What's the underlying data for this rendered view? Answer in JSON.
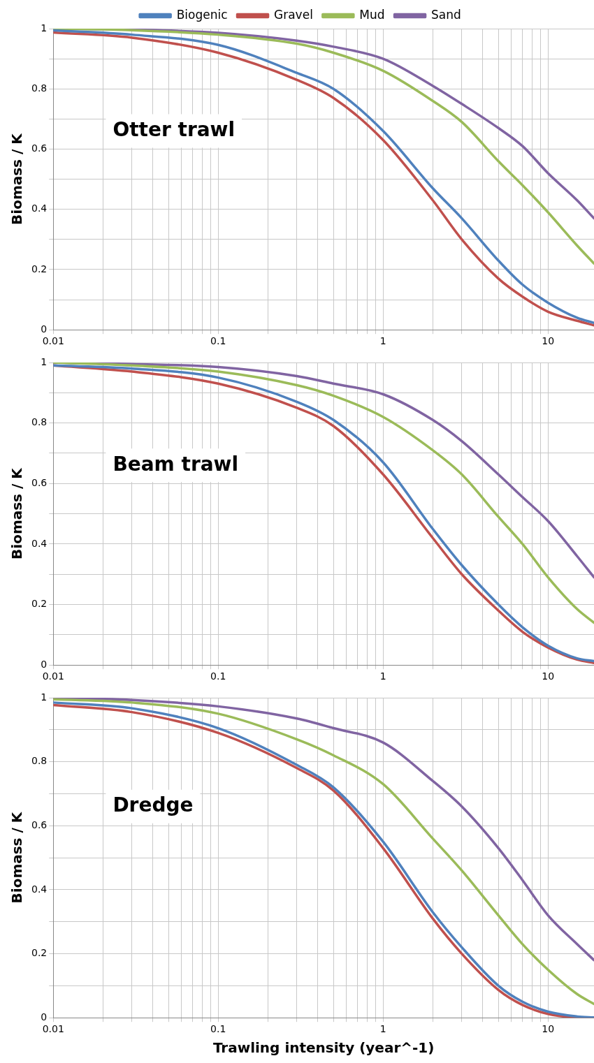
{
  "chart_data": [
    {
      "type": "line",
      "ylabel": "Biomass / K",
      "annotations": [
        "Otter trawl"
      ],
      "log": "x",
      "grid": true,
      "legend": "top",
      "marker": "none",
      "line_style": "solid",
      "xlim": [
        0.01,
        19
      ],
      "xticks": [
        0.01,
        {
          "value": 0.02,
          "label": null
        },
        {
          "value": 0.03,
          "label": null
        },
        {
          "value": 0.04,
          "label": null
        },
        {
          "value": 0.05,
          "label": null
        },
        {
          "value": 0.06,
          "label": null
        },
        {
          "value": 0.07,
          "label": null
        },
        {
          "value": 0.08,
          "label": null
        },
        {
          "value": 0.09,
          "label": null
        },
        0.1,
        {
          "value": 0.2,
          "label": null
        },
        {
          "value": 0.3,
          "label": null
        },
        {
          "value": 0.4,
          "label": null
        },
        {
          "value": 0.5,
          "label": null
        },
        {
          "value": 0.6,
          "label": null
        },
        {
          "value": 0.7,
          "label": null
        },
        {
          "value": 0.8,
          "label": null
        },
        {
          "value": 0.9,
          "label": null
        },
        1,
        {
          "value": 2,
          "label": null
        },
        {
          "value": 3,
          "label": null
        },
        {
          "value": 4,
          "label": null
        },
        {
          "value": 5,
          "label": null
        },
        {
          "value": 6,
          "label": null
        },
        {
          "value": 7,
          "label": null
        },
        {
          "value": 8,
          "label": null
        },
        {
          "value": 9,
          "label": null
        },
        10
      ],
      "ylim": [
        0,
        1
      ],
      "yticks": [
        0,
        {
          "value": 0.1,
          "label": null
        },
        0.2,
        {
          "value": 0.3,
          "label": null
        },
        0.4,
        {
          "value": 0.5,
          "label": null
        },
        0.6,
        {
          "value": 0.7,
          "label": null
        },
        0.8,
        {
          "value": 0.9,
          "label": null
        },
        1
      ],
      "x": [
        0.01,
        0.03,
        0.1,
        0.3,
        0.5,
        1,
        2,
        3,
        5,
        7,
        10,
        15,
        19
      ],
      "series": [
        {
          "name": "Biogenic",
          "color": "#4f81bd",
          "values": [
            0.994,
            0.98,
            0.946,
            0.853,
            0.8,
            0.66,
            0.47,
            0.37,
            0.23,
            0.15,
            0.09,
            0.04,
            0.023
          ]
        },
        {
          "name": "Gravel",
          "color": "#c0504d",
          "values": [
            0.987,
            0.97,
            0.92,
            0.83,
            0.77,
            0.63,
            0.43,
            0.3,
            0.17,
            0.11,
            0.06,
            0.03,
            0.015
          ]
        },
        {
          "name": "Mud",
          "color": "#9bbb59",
          "values": [
            1,
            0.995,
            0.98,
            0.95,
            0.92,
            0.86,
            0.76,
            0.69,
            0.56,
            0.48,
            0.39,
            0.28,
            0.22
          ]
        },
        {
          "name": "Sand",
          "color": "#8064a2",
          "values": [
            1,
            0.997,
            0.986,
            0.96,
            0.94,
            0.9,
            0.81,
            0.75,
            0.67,
            0.61,
            0.52,
            0.43,
            0.37
          ]
        }
      ]
    },
    {
      "type": "line",
      "ylabel": "Biomass / K",
      "annotations": [
        "Beam trawl"
      ],
      "log": "x",
      "grid": true,
      "marker": "none",
      "line_style": "solid",
      "xlim": [
        0.01,
        19
      ],
      "xticks": [
        0.01,
        {
          "value": 0.02,
          "label": null
        },
        {
          "value": 0.03,
          "label": null
        },
        {
          "value": 0.04,
          "label": null
        },
        {
          "value": 0.05,
          "label": null
        },
        {
          "value": 0.06,
          "label": null
        },
        {
          "value": 0.07,
          "label": null
        },
        {
          "value": 0.08,
          "label": null
        },
        {
          "value": 0.09,
          "label": null
        },
        0.1,
        {
          "value": 0.2,
          "label": null
        },
        {
          "value": 0.3,
          "label": null
        },
        {
          "value": 0.4,
          "label": null
        },
        {
          "value": 0.5,
          "label": null
        },
        {
          "value": 0.6,
          "label": null
        },
        {
          "value": 0.7,
          "label": null
        },
        {
          "value": 0.8,
          "label": null
        },
        {
          "value": 0.9,
          "label": null
        },
        1,
        {
          "value": 2,
          "label": null
        },
        {
          "value": 3,
          "label": null
        },
        {
          "value": 4,
          "label": null
        },
        {
          "value": 5,
          "label": null
        },
        {
          "value": 6,
          "label": null
        },
        {
          "value": 7,
          "label": null
        },
        {
          "value": 8,
          "label": null
        },
        {
          "value": 9,
          "label": null
        },
        10
      ],
      "ylim": [
        0,
        1
      ],
      "yticks": [
        0,
        {
          "value": 0.1,
          "label": null
        },
        0.2,
        {
          "value": 0.3,
          "label": null
        },
        0.4,
        {
          "value": 0.5,
          "label": null
        },
        0.6,
        {
          "value": 0.7,
          "label": null
        },
        0.8,
        {
          "value": 0.9,
          "label": null
        },
        1
      ],
      "x": [
        0.01,
        0.03,
        0.1,
        0.3,
        0.5,
        1,
        2,
        3,
        5,
        7,
        10,
        15,
        19
      ],
      "series": [
        {
          "color": "#4f81bd",
          "values": [
            0.99,
            0.98,
            0.95,
            0.87,
            0.81,
            0.67,
            0.45,
            0.33,
            0.2,
            0.125,
            0.064,
            0.022,
            0.013
          ]
        },
        {
          "color": "#c0504d",
          "values": [
            0.99,
            0.97,
            0.93,
            0.85,
            0.79,
            0.63,
            0.42,
            0.3,
            0.18,
            0.11,
            0.058,
            0.018,
            0.007
          ]
        },
        {
          "color": "#9bbb59",
          "values": [
            1,
            0.99,
            0.97,
            0.925,
            0.89,
            0.82,
            0.71,
            0.63,
            0.49,
            0.4,
            0.29,
            0.185,
            0.14
          ]
        },
        {
          "color": "#8064a2",
          "values": [
            1,
            0.995,
            0.985,
            0.955,
            0.93,
            0.895,
            0.81,
            0.74,
            0.63,
            0.555,
            0.476,
            0.36,
            0.29
          ]
        }
      ]
    },
    {
      "type": "line",
      "xlabel": "Trawling intensity (year^-1)",
      "ylabel": "Biomass / K",
      "annotations": [
        "Dredge"
      ],
      "log": "x",
      "grid": true,
      "marker": "none",
      "line_style": "solid",
      "xlim": [
        0.01,
        19
      ],
      "xticks": [
        0.01,
        {
          "value": 0.02,
          "label": null
        },
        {
          "value": 0.03,
          "label": null
        },
        {
          "value": 0.04,
          "label": null
        },
        {
          "value": 0.05,
          "label": null
        },
        {
          "value": 0.06,
          "label": null
        },
        {
          "value": 0.07,
          "label": null
        },
        {
          "value": 0.08,
          "label": null
        },
        {
          "value": 0.09,
          "label": null
        },
        0.1,
        {
          "value": 0.2,
          "label": null
        },
        {
          "value": 0.3,
          "label": null
        },
        {
          "value": 0.4,
          "label": null
        },
        {
          "value": 0.5,
          "label": null
        },
        {
          "value": 0.6,
          "label": null
        },
        {
          "value": 0.7,
          "label": null
        },
        {
          "value": 0.8,
          "label": null
        },
        {
          "value": 0.9,
          "label": null
        },
        1,
        {
          "value": 2,
          "label": null
        },
        {
          "value": 3,
          "label": null
        },
        {
          "value": 4,
          "label": null
        },
        {
          "value": 5,
          "label": null
        },
        {
          "value": 6,
          "label": null
        },
        {
          "value": 7,
          "label": null
        },
        {
          "value": 8,
          "label": null
        },
        {
          "value": 9,
          "label": null
        },
        10
      ],
      "ylim": [
        0,
        1
      ],
      "yticks": [
        0,
        {
          "value": 0.1,
          "label": null
        },
        0.2,
        {
          "value": 0.3,
          "label": null
        },
        0.4,
        {
          "value": 0.5,
          "label": null
        },
        0.6,
        {
          "value": 0.7,
          "label": null
        },
        0.8,
        {
          "value": 0.9,
          "label": null
        },
        1
      ],
      "x": [
        0.01,
        0.03,
        0.1,
        0.3,
        0.5,
        1,
        2,
        3,
        5,
        7,
        10,
        15,
        19
      ],
      "series": [
        {
          "color": "#4f81bd",
          "values": [
            0.985,
            0.967,
            0.905,
            0.79,
            0.72,
            0.55,
            0.33,
            0.22,
            0.1,
            0.05,
            0.019,
            0.004,
            0.001
          ]
        },
        {
          "color": "#c0504d",
          "values": [
            0.977,
            0.955,
            0.89,
            0.78,
            0.71,
            0.53,
            0.31,
            0.2,
            0.087,
            0.04,
            0.012,
            0.001,
            0
          ]
        },
        {
          "color": "#9bbb59",
          "values": [
            0.995,
            0.985,
            0.95,
            0.87,
            0.82,
            0.73,
            0.56,
            0.46,
            0.32,
            0.23,
            0.15,
            0.074,
            0.043
          ]
        },
        {
          "color": "#8064a2",
          "values": [
            1,
            0.993,
            0.973,
            0.935,
            0.905,
            0.86,
            0.74,
            0.66,
            0.53,
            0.43,
            0.32,
            0.23,
            0.18
          ]
        }
      ]
    }
  ]
}
